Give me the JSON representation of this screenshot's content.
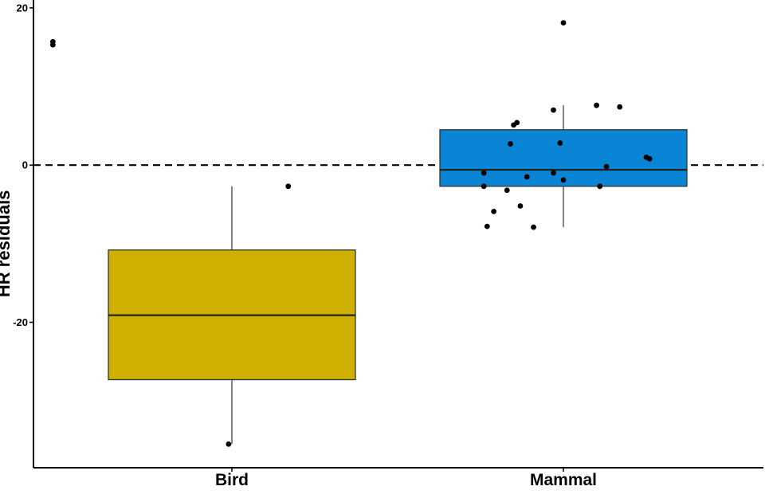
{
  "chart_data": {
    "type": "box",
    "ylabel": "HR residuals",
    "ylim": [
      -38.5,
      21
    ],
    "yticks": [
      {
        "value": 20,
        "label": "20"
      },
      {
        "value": 0,
        "label": "0"
      },
      {
        "value": -20,
        "label": "-20"
      }
    ],
    "reference_line": {
      "y": 0,
      "style": "dashed"
    },
    "grid": false,
    "categories": [
      "Bird",
      "Mammal"
    ],
    "boxes": [
      {
        "category": "Bird",
        "color": "#CFB000",
        "whisker_low": -35.5,
        "q1": -27.3,
        "median": -19.1,
        "q3": -10.8,
        "whisker_high": -2.7
      },
      {
        "category": "Mammal",
        "color": "#0A85D6",
        "whisker_low": -7.9,
        "q1": -2.7,
        "median": -0.6,
        "q3": 4.5,
        "whisker_high": 7.6
      }
    ],
    "points": [
      {
        "category": "Bird",
        "offset": -0.54,
        "y": 15.7
      },
      {
        "category": "Bird",
        "offset": -0.54,
        "y": 15.3
      },
      {
        "category": "Bird",
        "offset": 0.17,
        "y": -2.7
      },
      {
        "category": "Bird",
        "offset": -0.01,
        "y": -35.5
      },
      {
        "category": "Mammal",
        "offset": 0.0,
        "y": 18.1
      },
      {
        "category": "Mammal",
        "offset": -0.03,
        "y": 7.0
      },
      {
        "category": "Mammal",
        "offset": 0.1,
        "y": 7.6
      },
      {
        "category": "Mammal",
        "offset": 0.17,
        "y": 7.4
      },
      {
        "category": "Mammal",
        "offset": -0.14,
        "y": 5.4
      },
      {
        "category": "Mammal",
        "offset": -0.15,
        "y": 5.1
      },
      {
        "category": "Mammal",
        "offset": -0.16,
        "y": 2.7
      },
      {
        "category": "Mammal",
        "offset": -0.01,
        "y": 2.8
      },
      {
        "category": "Mammal",
        "offset": 0.25,
        "y": 1.0
      },
      {
        "category": "Mammal",
        "offset": 0.26,
        "y": 0.8
      },
      {
        "category": "Mammal",
        "offset": 0.13,
        "y": -0.2
      },
      {
        "category": "Mammal",
        "offset": -0.24,
        "y": -1.0
      },
      {
        "category": "Mammal",
        "offset": -0.03,
        "y": -1.0
      },
      {
        "category": "Mammal",
        "offset": -0.11,
        "y": -1.5
      },
      {
        "category": "Mammal",
        "offset": 0.0,
        "y": -1.9
      },
      {
        "category": "Mammal",
        "offset": -0.24,
        "y": -2.7
      },
      {
        "category": "Mammal",
        "offset": 0.11,
        "y": -2.7
      },
      {
        "category": "Mammal",
        "offset": -0.17,
        "y": -3.2
      },
      {
        "category": "Mammal",
        "offset": -0.13,
        "y": -5.2
      },
      {
        "category": "Mammal",
        "offset": -0.21,
        "y": -5.9
      },
      {
        "category": "Mammal",
        "offset": -0.23,
        "y": -7.8
      },
      {
        "category": "Mammal",
        "offset": -0.09,
        "y": -7.9
      }
    ]
  }
}
